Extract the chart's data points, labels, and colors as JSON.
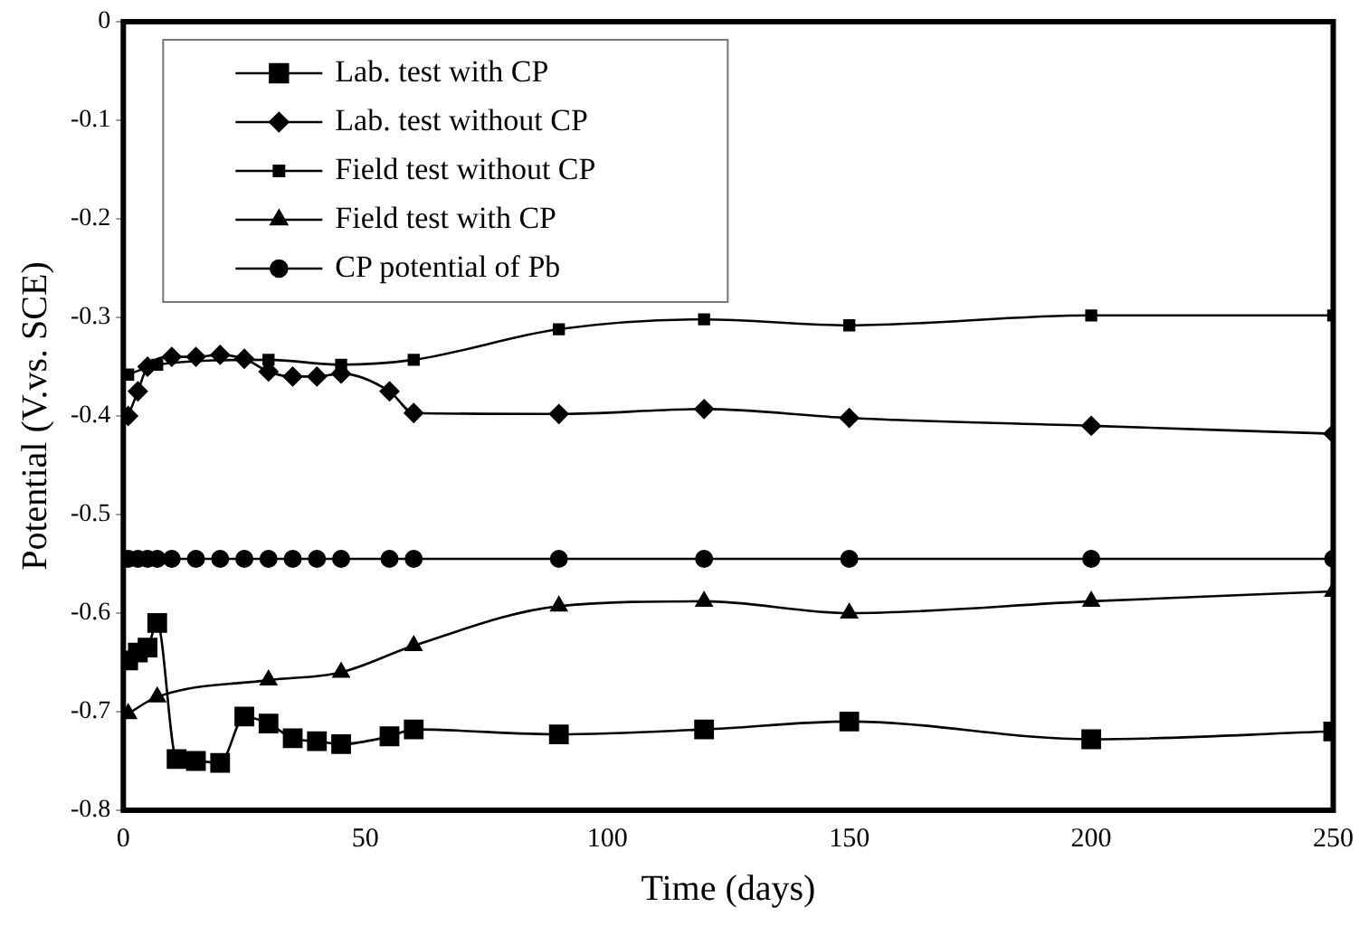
{
  "chart_data": {
    "type": "line",
    "xlabel": "Time (days)",
    "ylabel": "Potential (V.vs. SCE)",
    "xlim": [
      0,
      250
    ],
    "xticks": [
      0,
      50,
      100,
      150,
      200,
      250
    ],
    "ylim": [
      -0.8,
      0
    ],
    "yticks": [
      -0.8,
      -0.7,
      -0.6,
      -0.5,
      -0.4,
      -0.3,
      -0.2,
      -0.1,
      0
    ],
    "grid": false,
    "legend": "top left",
    "series": [
      {
        "name": "Lab. test with CP",
        "color": "#000000",
        "marker": "square",
        "x": [
          1,
          3,
          5,
          7,
          11,
          15,
          20,
          25,
          30,
          35,
          40,
          45,
          55,
          60,
          90,
          120,
          150,
          200,
          250
        ],
        "values": [
          -0.648,
          -0.64,
          -0.635,
          -0.61,
          -0.748,
          -0.75,
          -0.752,
          -0.705,
          -0.712,
          -0.727,
          -0.73,
          -0.733,
          -0.725,
          -0.718,
          -0.723,
          -0.718,
          -0.71,
          -0.728,
          -0.72
        ]
      },
      {
        "name": "Lab. test without CP",
        "color": "#000000",
        "marker": "diamond",
        "x": [
          1,
          3,
          5,
          10,
          15,
          20,
          25,
          30,
          35,
          40,
          45,
          55,
          60,
          90,
          120,
          150,
          200,
          250
        ],
        "values": [
          -0.4,
          -0.375,
          -0.35,
          -0.34,
          -0.34,
          -0.338,
          -0.342,
          -0.355,
          -0.36,
          -0.36,
          -0.357,
          -0.375,
          -0.397,
          -0.398,
          -0.393,
          -0.402,
          -0.41,
          -0.418
        ]
      },
      {
        "name": "Field test without CP",
        "color": "#000000",
        "marker": "square",
        "x": [
          1,
          7,
          30,
          45,
          60,
          90,
          120,
          150,
          200,
          250
        ],
        "values": [
          -0.358,
          -0.348,
          -0.343,
          -0.348,
          -0.343,
          -0.312,
          -0.302,
          -0.308,
          -0.298,
          -0.298
        ]
      },
      {
        "name": "Field test with CP",
        "color": "#000000",
        "marker": "triangle",
        "x": [
          1,
          7,
          30,
          45,
          60,
          90,
          120,
          150,
          200,
          250
        ],
        "values": [
          -0.702,
          -0.685,
          -0.668,
          -0.66,
          -0.633,
          -0.593,
          -0.588,
          -0.6,
          -0.588,
          -0.578
        ]
      },
      {
        "name": "CP potential of Pb",
        "color": "#000000",
        "marker": "circle",
        "x": [
          1,
          3,
          5,
          7,
          10,
          15,
          20,
          25,
          30,
          35,
          40,
          45,
          55,
          60,
          90,
          120,
          150,
          200,
          250
        ],
        "values": [
          -0.545,
          -0.545,
          -0.545,
          -0.545,
          -0.545,
          -0.545,
          -0.545,
          -0.545,
          -0.545,
          -0.545,
          -0.545,
          -0.545,
          -0.545,
          -0.545,
          -0.545,
          -0.545,
          -0.545,
          -0.545,
          -0.545
        ]
      }
    ]
  }
}
